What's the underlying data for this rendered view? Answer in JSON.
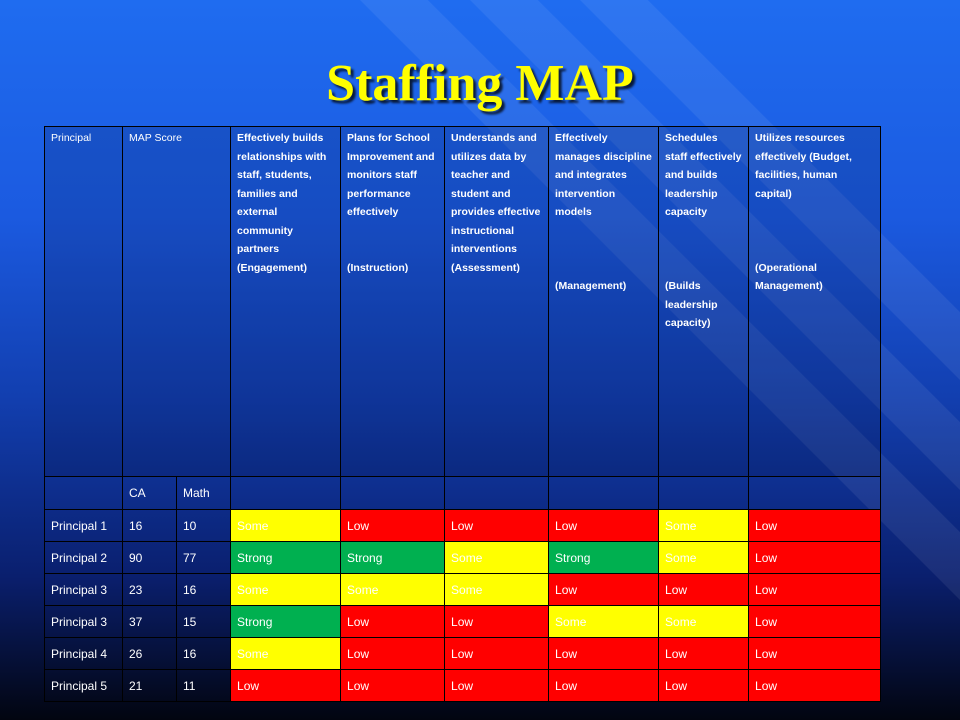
{
  "slide": {
    "title": "Staffing MAP"
  },
  "table": {
    "headers": [
      {
        "main": "Principal",
        "note": ""
      },
      {
        "main": "MAP Score",
        "note": ""
      },
      {
        "main": "Effectively builds relationships with staff, students, families and external community partners (Engagement)",
        "note": ""
      },
      {
        "main": "Plans for School Improvement and monitors staff performance effectively",
        "note": "(Instruction)"
      },
      {
        "main": "Understands and utilizes data by teacher and student and provides effective instructional interventions (Assessment)",
        "note": ""
      },
      {
        "main": "Effectively manages discipline and integrates intervention models",
        "note": "(Management)"
      },
      {
        "main": "Schedules staff effectively and builds leadership capacity",
        "note": "(Builds leadership capacity)"
      },
      {
        "main": "Utilizes resources effectively (Budget, facilities, human capital)",
        "note": "(Operational Management)"
      }
    ],
    "subheaders": {
      "ca": "CA",
      "math": "Math"
    },
    "rows": [
      {
        "principal": "Principal 1",
        "ca": "16",
        "math": "10",
        "ratings": [
          "Some",
          "Low",
          "Low",
          "Low",
          "Some",
          "Low"
        ]
      },
      {
        "principal": "Principal 2",
        "ca": "90",
        "math": "77",
        "ratings": [
          "Strong",
          "Strong",
          "Some",
          "Strong",
          "Some",
          "Low"
        ]
      },
      {
        "principal": "Principal 3",
        "ca": "23",
        "math": "16",
        "ratings": [
          "Some",
          "Some",
          "Some",
          "Low",
          "Low",
          "Low"
        ]
      },
      {
        "principal": "Principal 3",
        "ca": "37",
        "math": "15",
        "ratings": [
          "Strong",
          "Low",
          "Low",
          "Some",
          "Some",
          "Low"
        ]
      },
      {
        "principal": "Principal 4",
        "ca": "26",
        "math": "16",
        "ratings": [
          "Some",
          "Low",
          "Low",
          "Low",
          "Low",
          "Low"
        ]
      },
      {
        "principal": "Principal 5",
        "ca": "21",
        "math": "11",
        "ratings": [
          "Low",
          "Low",
          "Low",
          "Low",
          "Low",
          "Low"
        ]
      }
    ],
    "rating_colors": {
      "Low": "#ff0000",
      "Some": "#ffff00",
      "Strong": "#00b050"
    }
  }
}
